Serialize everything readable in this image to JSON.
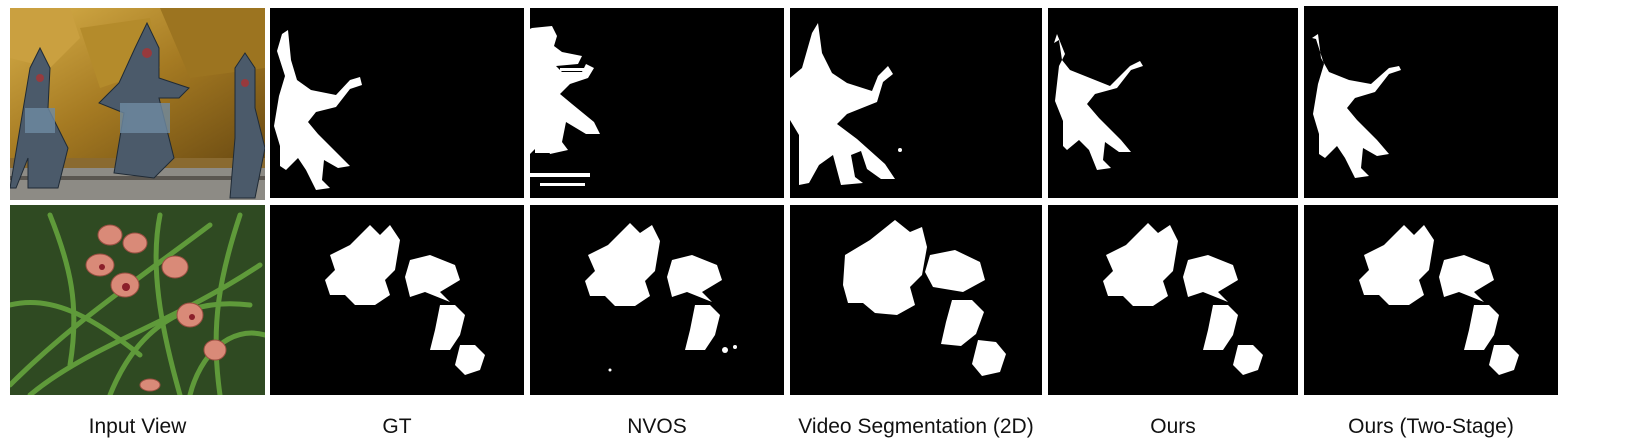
{
  "figure": {
    "columns": [
      {
        "id": "input",
        "label": "Input View"
      },
      {
        "id": "gt",
        "label": "GT"
      },
      {
        "id": "nvos",
        "label": "NVOS"
      },
      {
        "id": "video",
        "label": "Video Segmentation (2D)"
      },
      {
        "id": "ours",
        "label": "Ours"
      },
      {
        "id": "ours2",
        "label": "Ours (Two-Stage)"
      }
    ],
    "rows": [
      {
        "id": "statue",
        "input": "temple-statues-photo"
      },
      {
        "id": "orchid",
        "input": "orchid-flowers-photo"
      }
    ],
    "colors": {
      "mask": "#ffffff",
      "background": "#000000",
      "gold": "#b88a2a",
      "petal": "#d98a78",
      "leaf": "#3f7a2e"
    }
  }
}
